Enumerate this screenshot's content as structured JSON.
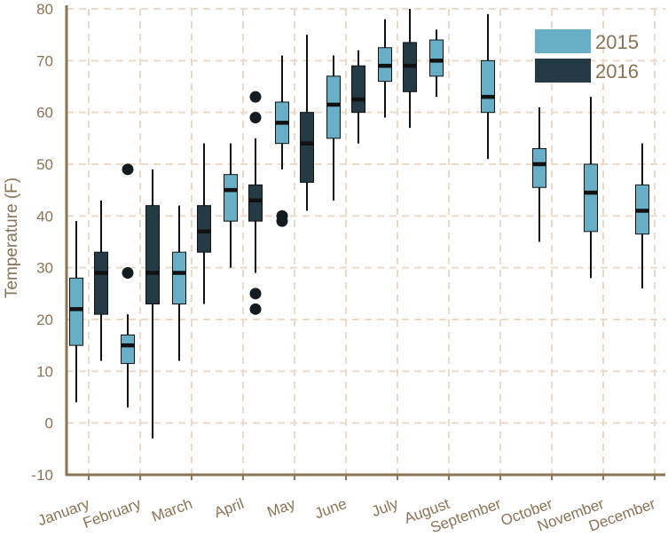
{
  "chart_data": {
    "type": "boxplot",
    "ylabel": "Temperature (F)",
    "ylim": [
      -10,
      80
    ],
    "yticks": [
      -10,
      0,
      10,
      20,
      30,
      40,
      50,
      60,
      70,
      80
    ],
    "grid": true,
    "legend_position": "top-right",
    "categories": [
      "January",
      "February",
      "March",
      "April",
      "May",
      "June",
      "July",
      "August",
      "September",
      "October",
      "November",
      "December"
    ],
    "series": [
      {
        "name": "2015",
        "color": "#67aec6",
        "boxes": [
          {
            "category": "January",
            "min": 4,
            "q1": 15,
            "median": 22,
            "q3": 28,
            "max": 39,
            "outliers": []
          },
          {
            "category": "February",
            "min": 3,
            "q1": 11.5,
            "median": 15,
            "q3": 17,
            "max": 21,
            "outliers": [
              29,
              49
            ]
          },
          {
            "category": "March",
            "min": 12,
            "q1": 23,
            "median": 29,
            "q3": 33,
            "max": 42,
            "outliers": []
          },
          {
            "category": "April",
            "min": 30,
            "q1": 39,
            "median": 45,
            "q3": 48,
            "max": 54,
            "outliers": []
          },
          {
            "category": "May",
            "min": 49,
            "q1": 54,
            "median": 58,
            "q3": 62,
            "max": 71,
            "outliers": [
              39,
              40
            ]
          },
          {
            "category": "June",
            "min": 43,
            "q1": 55,
            "median": 61.5,
            "q3": 67,
            "max": 71,
            "outliers": []
          },
          {
            "category": "July",
            "min": 59,
            "q1": 66,
            "median": 69,
            "q3": 72.5,
            "max": 78,
            "outliers": []
          },
          {
            "category": "August",
            "min": 63,
            "q1": 67,
            "median": 70,
            "q3": 74,
            "max": 76,
            "outliers": []
          },
          {
            "category": "September",
            "min": 51,
            "q1": 60,
            "median": 63,
            "q3": 70,
            "max": 79,
            "outliers": []
          },
          {
            "category": "October",
            "min": 35,
            "q1": 45.5,
            "median": 50,
            "q3": 53,
            "max": 61,
            "outliers": []
          },
          {
            "category": "November",
            "min": 28,
            "q1": 37,
            "median": 44.5,
            "q3": 50,
            "max": 63,
            "outliers": []
          },
          {
            "category": "December",
            "min": 26,
            "q1": 36.5,
            "median": 41,
            "q3": 46,
            "max": 54,
            "outliers": []
          }
        ]
      },
      {
        "name": "2016",
        "color": "#243a44",
        "boxes": [
          {
            "category": "January",
            "min": 12,
            "q1": 21,
            "median": 29,
            "q3": 33,
            "max": 43,
            "outliers": []
          },
          {
            "category": "February",
            "min": -3,
            "q1": 23,
            "median": 29,
            "q3": 42,
            "max": 49,
            "outliers": []
          },
          {
            "category": "March",
            "min": 23,
            "q1": 33,
            "median": 37,
            "q3": 42,
            "max": 54,
            "outliers": []
          },
          {
            "category": "April",
            "min": 29,
            "q1": 39,
            "median": 43,
            "q3": 46,
            "max": 55,
            "outliers": [
              22,
              25,
              59,
              63
            ]
          },
          {
            "category": "May",
            "min": 41,
            "q1": 46.5,
            "median": 54,
            "q3": 60,
            "max": 75,
            "outliers": []
          },
          {
            "category": "June",
            "min": 54,
            "q1": 60,
            "median": 62.5,
            "q3": 69,
            "max": 72,
            "outliers": []
          },
          {
            "category": "July",
            "min": 57,
            "q1": 64,
            "median": 69,
            "q3": 73.5,
            "max": 80,
            "outliers": []
          }
        ]
      }
    ]
  }
}
